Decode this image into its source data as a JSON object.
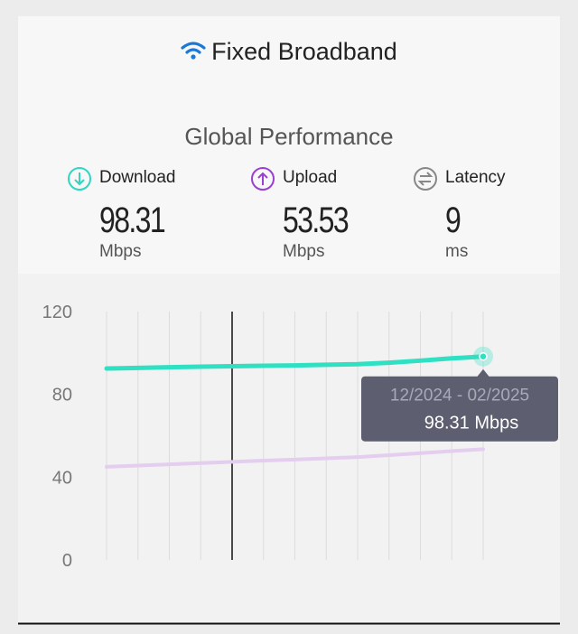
{
  "header": {
    "title": "Fixed Broadband",
    "section_title": "Global Performance"
  },
  "metrics": [
    {
      "label": "Download",
      "value": "98.31",
      "unit": "Mbps"
    },
    {
      "label": "Upload",
      "value": "53.53",
      "unit": "Mbps"
    },
    {
      "label": "Latency",
      "value": "9",
      "unit": "ms"
    }
  ],
  "chart_data": {
    "type": "line",
    "categories": [
      null,
      null,
      null,
      null,
      null,
      null,
      null,
      null,
      null,
      null,
      null,
      null,
      "12/2024 - 02/2025"
    ],
    "series": [
      {
        "color": "#2fe0c2",
        "values": [
          92.5,
          92.8,
          93.1,
          93.4,
          93.6,
          93.8,
          94.0,
          94.3,
          94.6,
          95.3,
          96.3,
          97.4,
          98.31
        ]
      },
      {
        "color": "#e4cdef",
        "values": [
          45.0,
          45.6,
          46.2,
          46.8,
          47.4,
          48.0,
          48.5,
          49.1,
          49.7,
          50.6,
          51.6,
          52.6,
          53.53
        ]
      }
    ],
    "tooltip_value": "98.31 Mbps",
    "ylim": [
      0,
      120
    ],
    "yticks": [
      0,
      40,
      80,
      120
    ],
    "grid": true
  }
}
